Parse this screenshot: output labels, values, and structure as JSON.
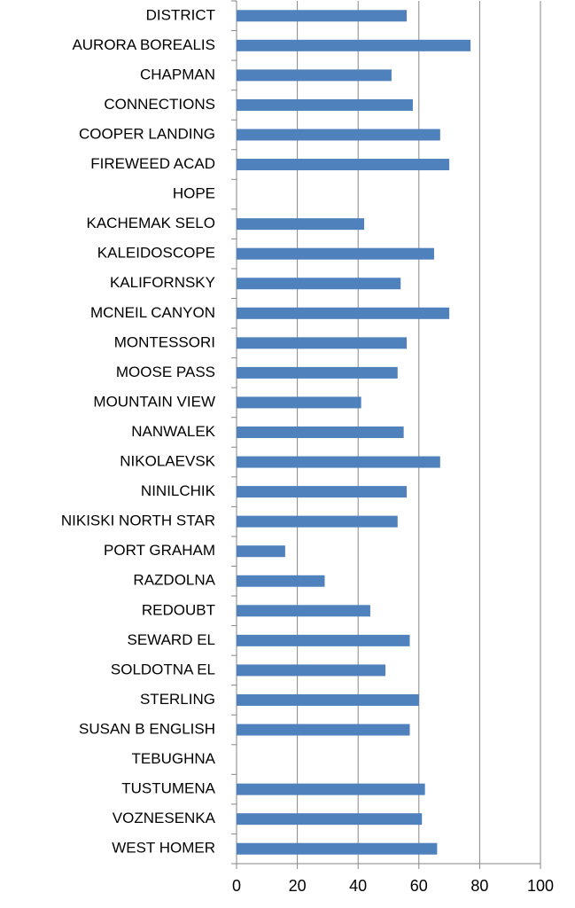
{
  "chart_data": {
    "type": "barh",
    "categories": [
      "DISTRICT",
      "AURORA BOREALIS",
      "CHAPMAN",
      "CONNECTIONS",
      "COOPER LANDING",
      "FIREWEED ACAD",
      "HOPE",
      "KACHEMAK SELO",
      "KALEIDOSCOPE",
      "KALIFORNSKY",
      "MCNEIL CANYON",
      "MONTESSORI",
      "MOOSE PASS",
      "MOUNTAIN VIEW",
      "NANWALEK",
      "NIKOLAEVSK",
      "NINILCHIK",
      "NIKISKI NORTH STAR",
      "PORT GRAHAM",
      "RAZDOLNA",
      "REDOUBT",
      "SEWARD EL",
      "SOLDOTNA EL",
      "STERLING",
      "SUSAN B ENGLISH",
      "TEBUGHNA",
      "TUSTUMENA",
      "VOZNESENKA",
      "WEST HOMER"
    ],
    "values": [
      56,
      77,
      51,
      58,
      67,
      70,
      null,
      42,
      65,
      54,
      70,
      56,
      53,
      41,
      55,
      67,
      56,
      53,
      16,
      29,
      44,
      57,
      49,
      60,
      57,
      null,
      62,
      61,
      66
    ],
    "color": "#4f81bd",
    "xlim": [
      0,
      100
    ],
    "xticks": [
      0,
      20,
      40,
      60,
      80,
      100
    ],
    "grid": true
  }
}
